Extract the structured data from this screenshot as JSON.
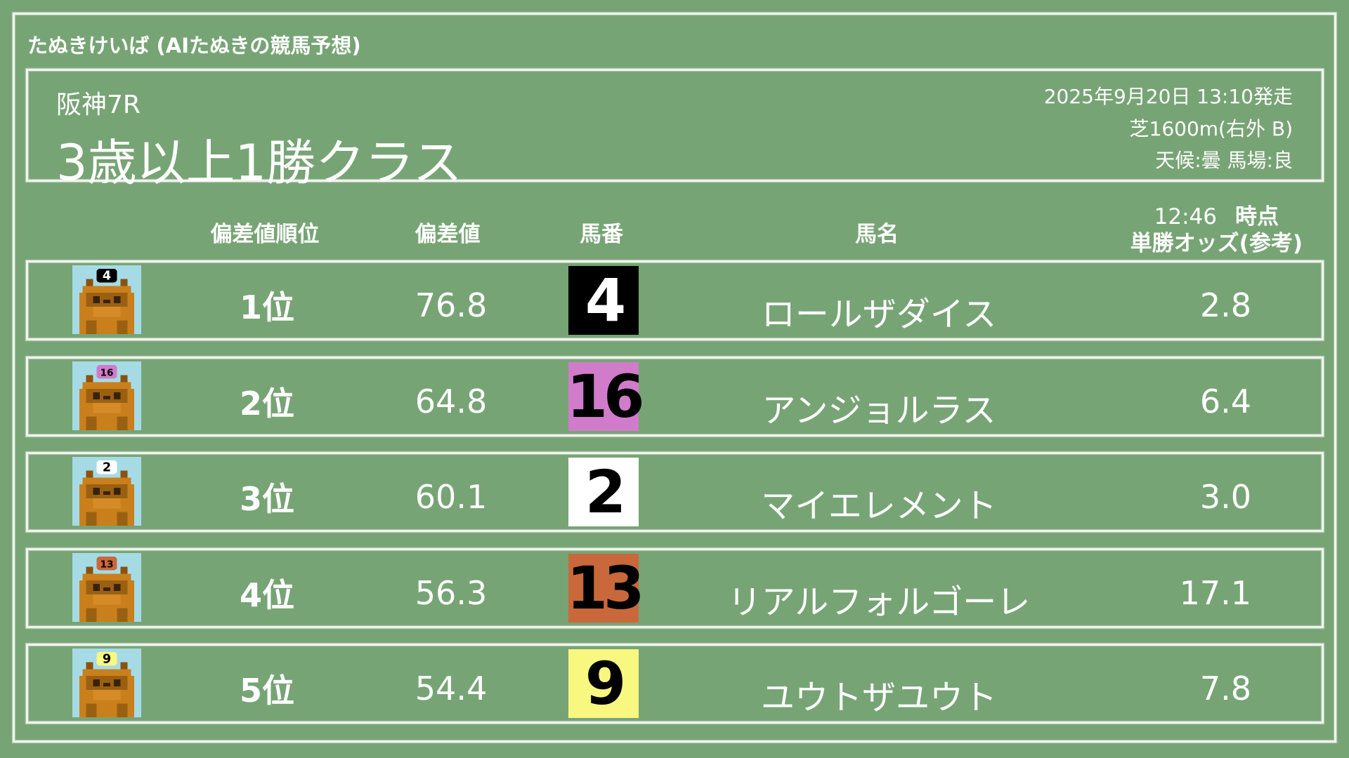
{
  "app_title": "たぬきけいば (AIたぬきの競馬予想)",
  "race": {
    "venue": "阪神7R",
    "name": "3歳以上1勝クラス",
    "datetime": "2025年9月20日 13:10発走",
    "course": "芝1600m(右外 B)",
    "conditions": "天候:曇 馬場:良"
  },
  "columns": {
    "rank": "偏差値順位",
    "score": "偏差値",
    "number": "馬番",
    "horse": "馬名",
    "odds_time": "12:46",
    "odds_time_suffix": "時点",
    "odds": "単勝オッズ(参考)"
  },
  "rows": [
    {
      "rank": "1位",
      "score": "76.8",
      "number": "4",
      "horse": "ロールザダイス",
      "odds": "2.8",
      "gate_bg": "#000000",
      "gate_fg": "#ffffff"
    },
    {
      "rank": "2位",
      "score": "64.8",
      "number": "16",
      "horse": "アンジョルラス",
      "odds": "6.4",
      "gate_bg": "#d07ccb",
      "gate_fg": "#000000"
    },
    {
      "rank": "3位",
      "score": "60.1",
      "number": "2",
      "horse": "マイエレメント",
      "odds": "3.0",
      "gate_bg": "#ffffff",
      "gate_fg": "#000000"
    },
    {
      "rank": "4位",
      "score": "56.3",
      "number": "13",
      "horse": "リアルフォルゴーレ",
      "odds": "17.1",
      "gate_bg": "#c9683a",
      "gate_fg": "#000000"
    },
    {
      "rank": "5位",
      "score": "54.4",
      "number": "9",
      "horse": "ユウトザユウト",
      "odds": "7.8",
      "gate_bg": "#f8f780",
      "gate_fg": "#000000"
    }
  ],
  "colors": {
    "background": "#77a475",
    "chalk": "#f2f4ee",
    "tanuki": "#c9801c"
  }
}
